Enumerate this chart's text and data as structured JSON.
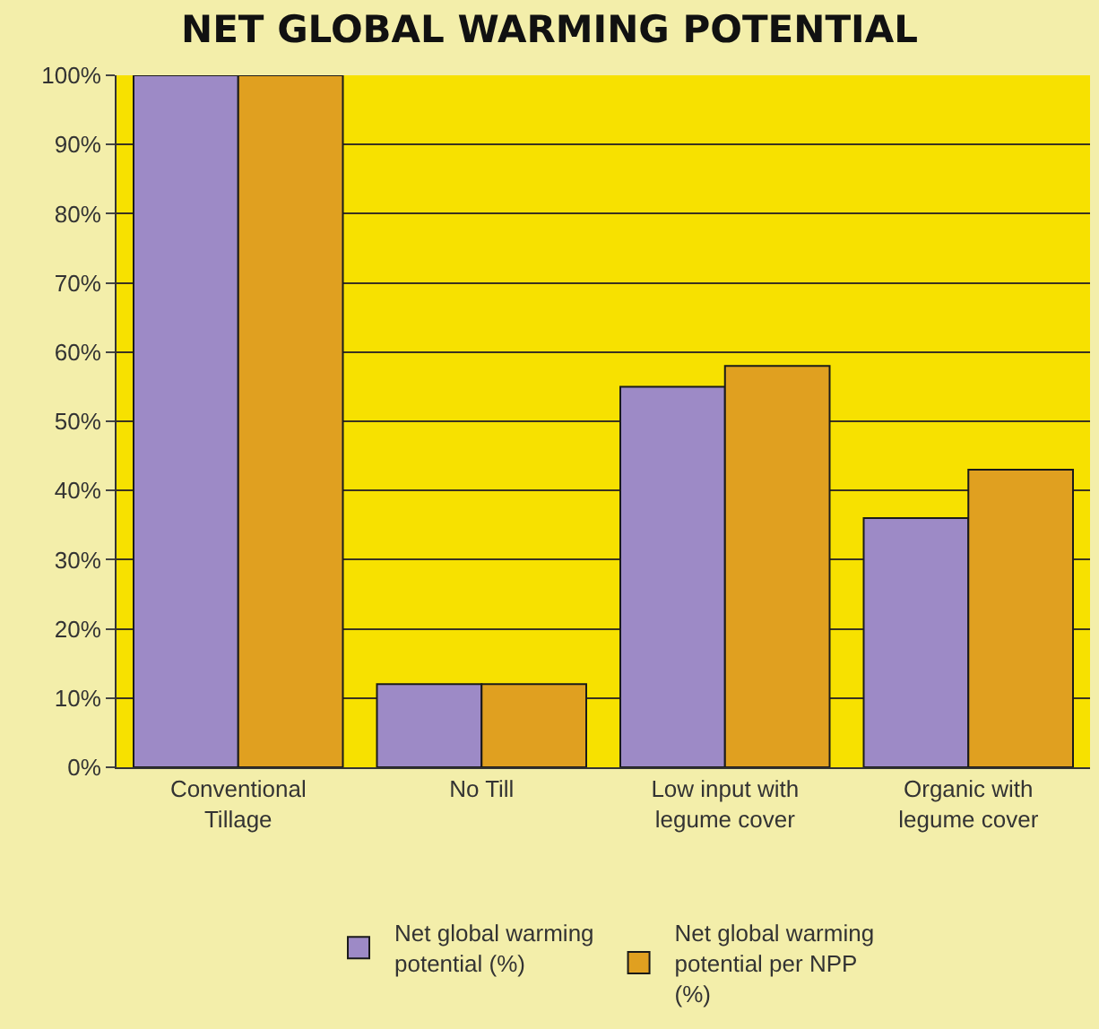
{
  "chart_data": {
    "type": "bar",
    "title": "NET GLOBAL WARMING POTENTIAL",
    "categories": [
      "Conventional Tillage",
      "No Till",
      "Low input with legume cover",
      "Organic with legume cover"
    ],
    "series": [
      {
        "name": "Net global warming potential (%)",
        "color": "#9d8ac6",
        "values": [
          100,
          12,
          55,
          36
        ]
      },
      {
        "name": "Net global warming potential per NPP (%)",
        "color": "#e0a020",
        "values": [
          100,
          12,
          58,
          43
        ]
      }
    ],
    "ylim": [
      0,
      100
    ],
    "yticks": [
      {
        "value": 0,
        "label": "0%"
      },
      {
        "value": 10,
        "label": "10%"
      },
      {
        "value": 20,
        "label": "20%"
      },
      {
        "value": 30,
        "label": "30%"
      },
      {
        "value": 40,
        "label": "40%"
      },
      {
        "value": 50,
        "label": "50%"
      },
      {
        "value": 60,
        "label": "60%"
      },
      {
        "value": 70,
        "label": "70%"
      },
      {
        "value": 80,
        "label": "80%"
      },
      {
        "value": 90,
        "label": "90%"
      },
      {
        "value": 100,
        "label": "100%"
      }
    ],
    "grid": "y",
    "legend": "bottom"
  }
}
